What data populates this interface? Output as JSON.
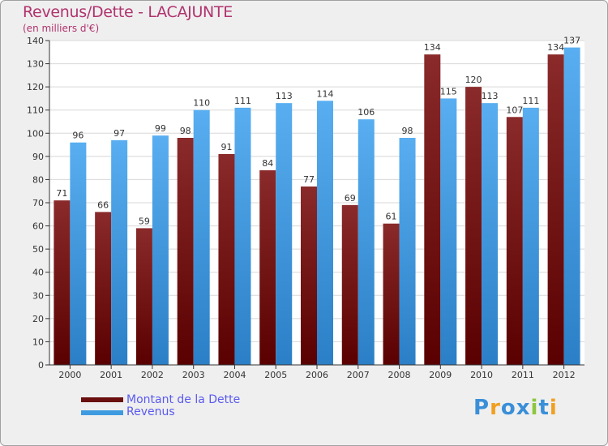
{
  "chart_data": {
    "type": "bar",
    "title": "Revenus/Dette - LACAJUNTE",
    "subtitle": "(en milliers d'€)",
    "categories": [
      "2000",
      "2001",
      "2002",
      "2003",
      "2004",
      "2005",
      "2006",
      "2007",
      "2008",
      "2009",
      "2010",
      "2011",
      "2012"
    ],
    "series": [
      {
        "name": "Montant de la Dette",
        "color": "#7a1c1c",
        "values": [
          71,
          66,
          59,
          98,
          91,
          84,
          77,
          69,
          61,
          134,
          120,
          107,
          134
        ]
      },
      {
        "name": "Revenus",
        "color": "#3f9be0",
        "values": [
          96,
          97,
          99,
          110,
          111,
          113,
          114,
          106,
          98,
          115,
          113,
          111,
          137
        ]
      }
    ],
    "ylim": [
      0,
      140
    ],
    "yticks": [
      0,
      10,
      20,
      30,
      40,
      50,
      60,
      70,
      80,
      90,
      100,
      110,
      120,
      130,
      140
    ],
    "grid": true,
    "legend": "bottom-left"
  },
  "logo": {
    "text": "Proxiti",
    "letters": [
      {
        "ch": "P",
        "color": "#3a8fd8"
      },
      {
        "ch": "r",
        "color": "#f0a020"
      },
      {
        "ch": "o",
        "color": "#3a8fd8"
      },
      {
        "ch": "x",
        "color": "#3a8fd8"
      },
      {
        "ch": "i",
        "color": "#8cc63f"
      },
      {
        "ch": "t",
        "color": "#3a8fd8"
      },
      {
        "ch": "i",
        "color": "#f0a020"
      }
    ]
  }
}
